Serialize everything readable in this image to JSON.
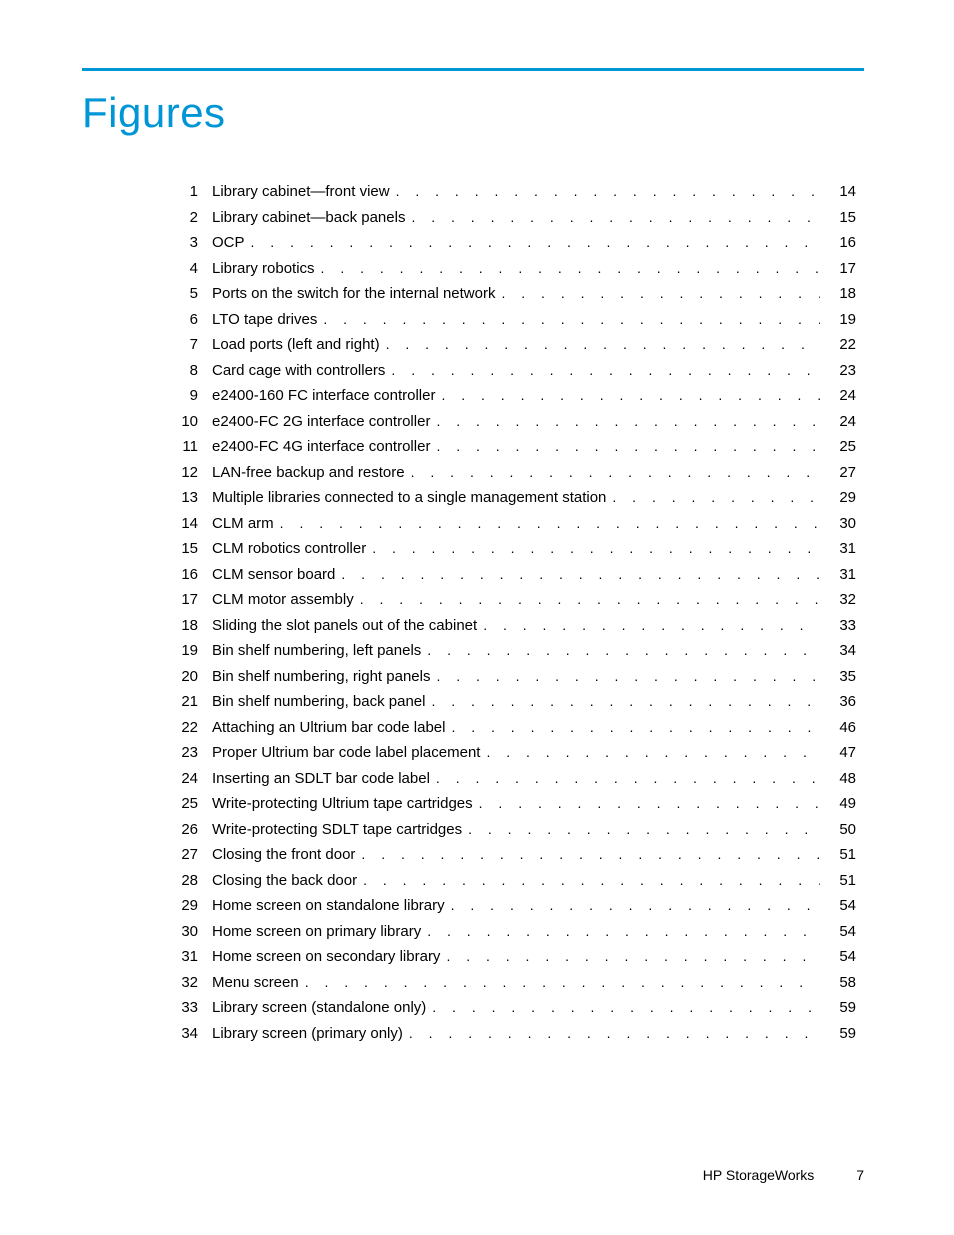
{
  "colors": {
    "accent": "#0096d6",
    "text": "#000000",
    "background": "#ffffff"
  },
  "typography": {
    "title_fontsize": 42,
    "body_fontsize": 15,
    "footer_fontsize": 14,
    "family": "Trebuchet MS"
  },
  "title": "Figures",
  "footer": {
    "brand": "HP StorageWorks",
    "page_number": "7"
  },
  "entries": [
    {
      "n": "1",
      "label": "Library cabinet—front view",
      "page": "14"
    },
    {
      "n": "2",
      "label": "Library cabinet—back panels",
      "page": "15"
    },
    {
      "n": "3",
      "label": "OCP",
      "page": "16"
    },
    {
      "n": "4",
      "label": "Library robotics",
      "page": "17"
    },
    {
      "n": "5",
      "label": "Ports on the switch for the internal network",
      "page": "18"
    },
    {
      "n": "6",
      "label": "LTO tape drives",
      "page": "19"
    },
    {
      "n": "7",
      "label": "Load ports (left and right)",
      "page": "22"
    },
    {
      "n": "8",
      "label": "Card cage with controllers",
      "page": "23"
    },
    {
      "n": "9",
      "label": "e2400-160 FC interface controller",
      "page": "24"
    },
    {
      "n": "10",
      "label": "e2400-FC 2G interface controller",
      "page": "24"
    },
    {
      "n": "11",
      "label": "e2400-FC 4G interface controller",
      "page": "25"
    },
    {
      "n": "12",
      "label": "LAN-free backup and restore",
      "page": "27"
    },
    {
      "n": "13",
      "label": "Multiple libraries connected to a single management station",
      "page": "29"
    },
    {
      "n": "14",
      "label": "CLM arm",
      "page": "30"
    },
    {
      "n": "15",
      "label": "CLM robotics controller",
      "page": "31"
    },
    {
      "n": "16",
      "label": "CLM sensor board",
      "page": "31"
    },
    {
      "n": "17",
      "label": "CLM motor assembly",
      "page": "32"
    },
    {
      "n": "18",
      "label": "Sliding the slot panels out of the cabinet",
      "page": "33"
    },
    {
      "n": "19",
      "label": "Bin shelf numbering, left panels",
      "page": "34"
    },
    {
      "n": "20",
      "label": "Bin shelf numbering, right panels",
      "page": "35"
    },
    {
      "n": "21",
      "label": "Bin shelf numbering, back panel",
      "page": "36"
    },
    {
      "n": "22",
      "label": "Attaching an Ultrium bar code label",
      "page": "46"
    },
    {
      "n": "23",
      "label": "Proper Ultrium bar code label placement",
      "page": "47"
    },
    {
      "n": "24",
      "label": "Inserting an SDLT bar code label",
      "page": "48"
    },
    {
      "n": "25",
      "label": "Write-protecting Ultrium tape cartridges",
      "page": "49"
    },
    {
      "n": "26",
      "label": "Write-protecting SDLT tape cartridges",
      "page": "50"
    },
    {
      "n": "27",
      "label": "Closing the front door",
      "page": "51"
    },
    {
      "n": "28",
      "label": "Closing the back door",
      "page": "51"
    },
    {
      "n": "29",
      "label": "Home screen on standalone library",
      "page": "54"
    },
    {
      "n": "30",
      "label": "Home screen on primary library",
      "page": "54"
    },
    {
      "n": "31",
      "label": "Home screen on secondary library",
      "page": "54"
    },
    {
      "n": "32",
      "label": "Menu screen",
      "page": "58"
    },
    {
      "n": "33",
      "label": "Library screen (standalone only)",
      "page": "59"
    },
    {
      "n": "34",
      "label": "Library screen (primary only)",
      "page": "59"
    }
  ]
}
